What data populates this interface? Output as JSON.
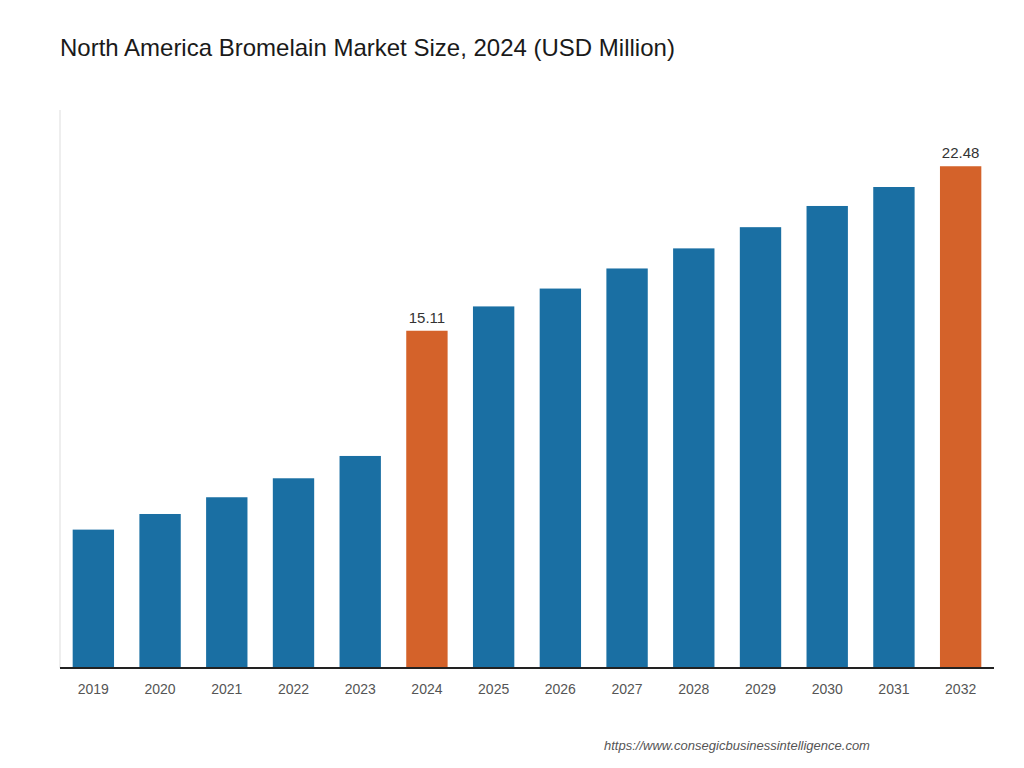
{
  "chart_data": {
    "type": "bar",
    "title": "North America Bromelain Market Size, 2024 (USD Million)",
    "categories": [
      "2019",
      "2020",
      "2021",
      "2022",
      "2023",
      "2024",
      "2025",
      "2026",
      "2027",
      "2028",
      "2029",
      "2030",
      "2031",
      "2032"
    ],
    "values": [
      6.2,
      6.9,
      7.65,
      8.5,
      9.5,
      15.11,
      16.2,
      17.0,
      17.9,
      18.8,
      19.75,
      20.7,
      21.55,
      22.48
    ],
    "value_labels": [
      null,
      null,
      null,
      null,
      null,
      "15.11",
      null,
      null,
      null,
      null,
      null,
      null,
      null,
      "22.48"
    ],
    "colors": [
      "#1a6fa3",
      "#1a6fa3",
      "#1a6fa3",
      "#1a6fa3",
      "#1a6fa3",
      "#d4622a",
      "#1a6fa3",
      "#1a6fa3",
      "#1a6fa3",
      "#1a6fa3",
      "#1a6fa3",
      "#1a6fa3",
      "#1a6fa3",
      "#d4622a"
    ],
    "ylim": [
      0,
      25
    ],
    "data_labels": true,
    "tick_labels": "x",
    "grid": false,
    "annotations": [
      "https://www.consegicbusinessintelligence.com"
    ]
  }
}
